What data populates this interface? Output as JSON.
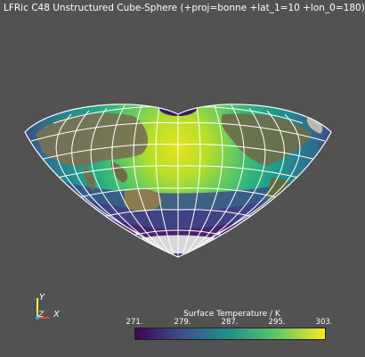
{
  "title": "LFRic C48 Unstructured Cube-Sphere (+proj=bonne +lat_1=10 +lon_0=180)",
  "colorbar": {
    "title": "Surface Temperature / K",
    "ticks": [
      "271.",
      "279.",
      "287.",
      "295.",
      "303."
    ],
    "colormap": "viridis",
    "colors": [
      "#440154",
      "#3b528b",
      "#21918c",
      "#5ec962",
      "#fde725"
    ]
  },
  "axes": {
    "y_label": "Y",
    "z_label": "Z",
    "x_label": "X"
  },
  "icons": {
    "map": "bonne-projection-globe-icon",
    "orientation": "orientation-axes-icon"
  }
}
